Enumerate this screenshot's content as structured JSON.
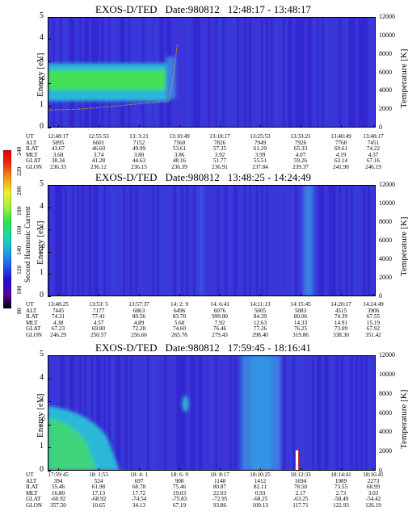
{
  "colors": {
    "background_blue": "#3c33d8",
    "deep_blue": "#2a22c8",
    "band_green": "#44e055",
    "band_cyan": "#2ab8d8",
    "light_blue": "#3b7fe0",
    "trace_orange": "#f0a030"
  },
  "colorbar": {
    "label": "Second Harmonic Current",
    "ticks": [
      "80",
      "100",
      "120",
      "140",
      "160",
      "180",
      "200",
      "220",
      "240"
    ],
    "stops": [
      "#000000",
      "#5a00a0",
      "#2010d0",
      "#1f5fe8",
      "#20a8e0",
      "#20d8a8",
      "#30e050",
      "#a0f040",
      "#f0f030",
      "#f0a020",
      "#f03010",
      "#e00000"
    ]
  },
  "panels": [
    {
      "title": "EXOS-D/TED",
      "date": "Date:980812",
      "range": "12:48:17 - 13:48:17",
      "ylabel_left": "Energy [eV]",
      "ylabel_right": "Temperature [K]",
      "yticks_left": [
        "0",
        "1",
        "2",
        "3",
        "4",
        "5"
      ],
      "yticks_right": [
        "0",
        "2000",
        "4000",
        "6000",
        "8000",
        "10000",
        "12000"
      ],
      "orbit": {
        "rows": [
          "UT",
          "ALT",
          "ILAT",
          "MLT",
          "GLAT",
          "GLON"
        ],
        "columns": [
          [
            "12:48:17",
            "5895",
            "43.67",
            "3.68",
            "38.34",
            "236.33"
          ],
          [
            "12:55:53",
            "6601",
            "46.60",
            "3.74",
            "41.28",
            "236.12"
          ],
          [
            "13: 3:21",
            "7152",
            "49.99",
            "3.80",
            "44.63",
            "236.15"
          ],
          [
            "13:10:49",
            "7560",
            "53.61",
            "3.86",
            "48.16",
            "236.39"
          ],
          [
            "13:18:17",
            "7826",
            "57.35",
            "3.92",
            "51.77",
            "236.91"
          ],
          [
            "13:25:53",
            "7949",
            "61.29",
            "3.99",
            "55.51",
            "237.84"
          ],
          [
            "13:33:21",
            "7926",
            "65.33",
            "4.07",
            "59.26",
            "239.37"
          ],
          [
            "13:40:49",
            "7760",
            "69.61",
            "4.19",
            "63.14",
            "241.90"
          ],
          [
            "13:48:17",
            "7451",
            "74.22",
            "4.37",
            "67.16",
            "246.19"
          ]
        ]
      }
    },
    {
      "title": "EXOS-D/TED",
      "date": "Date:980812",
      "range": "13:48:25 - 14:24:49",
      "ylabel_left": "Energy [eV]",
      "ylabel_right": "Temperature [K]",
      "yticks_left": [
        "0",
        "1",
        "2",
        "3",
        "4",
        "5"
      ],
      "yticks_right": [
        "0",
        "2000",
        "4000",
        "6000",
        "8000",
        "10000",
        "12000"
      ],
      "orbit": {
        "rows": [
          "UT",
          "ALT",
          "ILAT",
          "MLT",
          "GLAT",
          "GLON"
        ],
        "columns": [
          [
            "13:48:25",
            "7445",
            "74.31",
            "4.38",
            "67.23",
            "246.29"
          ],
          [
            "13:53: 5",
            "7177",
            "77.41",
            "4.57",
            "69.80",
            "250.57"
          ],
          [
            "13:57:37",
            "6863",
            "80.56",
            "4.89",
            "72.28",
            "256.66"
          ],
          [
            "14: 2: 9",
            "6496",
            "83.70",
            "5.60",
            "74.60",
            "265.78"
          ],
          [
            "14: 6:41",
            "6076",
            "999.00",
            "7.92",
            "76.46",
            "279.43"
          ],
          [
            "14:11:13",
            "5605",
            "84.39",
            "12.63",
            "77.26",
            "298.40"
          ],
          [
            "14:15:45",
            "5083",
            "80.06",
            "14.33",
            "76.25",
            "319.86"
          ],
          [
            "14:20:17",
            "4515",
            "74.39",
            "14.91",
            "73.09",
            "338.30"
          ],
          [
            "14:24:49",
            "3906",
            "67.55",
            "15.19",
            "67.92",
            "351.42"
          ]
        ]
      }
    },
    {
      "title": "EXOS-D/TED",
      "date": "Date:980812",
      "range": "17:59:45 - 18:16:41",
      "ylabel_left": "Energy [eV]",
      "ylabel_right": "Temperature [K]",
      "yticks_left": [
        "0",
        "1",
        "2",
        "3",
        "4",
        "5"
      ],
      "yticks_right": [
        "0",
        "2000",
        "4000",
        "6000",
        "8000",
        "10000",
        "12000"
      ],
      "orbit": {
        "rows": [
          "UT",
          "ALT",
          "ILAT",
          "MLT",
          "GLAT",
          "GLON"
        ],
        "columns": [
          [
            "17:59:45",
            "394",
            "55.46",
            "16.80",
            "-60.92",
            "357.50"
          ],
          [
            "18: 1:53",
            "524",
            "61.98",
            "17.13",
            "-68.92",
            "10.65"
          ],
          [
            "18: 4: 1",
            "697",
            "68.78",
            "17.72",
            "-74.54",
            "34.13"
          ],
          [
            "18: 6: 9",
            "908",
            "75.46",
            "19.03",
            "-75.83",
            "67.19"
          ],
          [
            "18: 8:17",
            "1148",
            "80.87",
            "22.03",
            "-72.95",
            "93.86"
          ],
          [
            "18:10:25",
            "1412",
            "82.11",
            "0.93",
            "-68.25",
            "109.13"
          ],
          [
            "18:12:33",
            "1694",
            "78.50",
            "2.17",
            "-63.25",
            "117.71"
          ],
          [
            "18:14:41",
            "1989",
            "73.55",
            "2.73",
            "-58.49",
            "122.93"
          ],
          [
            "18:16:41",
            "2273",
            "68.99",
            "3.03",
            "-54.42",
            "126.19"
          ]
        ]
      }
    }
  ],
  "chart_data": [
    {
      "type": "heatmap",
      "title": "EXOS-D/TED Date:980812 12:48:17 - 13:48:17",
      "xlabel": "UT",
      "x": [
        "12:48:17",
        "12:55:53",
        "13: 3:21",
        "13:10:49",
        "13:18:17",
        "13:25:53",
        "13:33:21",
        "13:40:49",
        "13:48:17"
      ],
      "ylabel": "Energy [eV]",
      "ylim": [
        0,
        5
      ],
      "y2label": "Temperature [K]",
      "y2lim": [
        0,
        12000
      ],
      "colorbar_label": "Second Harmonic Current",
      "colorbar_range": [
        80,
        240
      ],
      "features": [
        {
          "kind": "band",
          "x_start": "12:48:17",
          "x_end": "13:10:49",
          "energy_range": [
            1.7,
            2.6
          ],
          "level": 180
        },
        {
          "kind": "band",
          "x_start": "12:48:17",
          "x_end": "13:10:49",
          "energy_range": [
            1.2,
            2.9
          ],
          "level": 155
        }
      ],
      "series": [
        {
          "name": "Temperature",
          "x": [
            "12:48:17",
            "12:55:53",
            "13: 3:21",
            "13:10:49",
            "13:12:00",
            "13:13:00"
          ],
          "values": [
            1900,
            2000,
            2300,
            2900,
            6000,
            9000
          ]
        }
      ]
    },
    {
      "type": "heatmap",
      "title": "EXOS-D/TED Date:980812 13:48:25 - 14:24:49",
      "xlabel": "UT",
      "x": [
        "13:48:25",
        "13:53: 5",
        "13:57:37",
        "14: 2: 9",
        "14: 6:41",
        "14:11:13",
        "14:15:45",
        "14:20:17",
        "14:24:49"
      ],
      "ylabel": "Energy [eV]",
      "ylim": [
        0,
        5
      ],
      "y2label": "Temperature [K]",
      "y2lim": [
        0,
        12000
      ],
      "colorbar_label": "Second Harmonic Current",
      "colorbar_range": [
        80,
        240
      ],
      "features": [
        {
          "kind": "stripe",
          "x_start": "14:15:45",
          "x_end": "14:17:00",
          "energy_range": [
            0,
            5
          ],
          "level": 150
        }
      ]
    },
    {
      "type": "heatmap",
      "title": "EXOS-D/TED Date:980812 17:59:45 - 18:16:41",
      "xlabel": "UT",
      "x": [
        "17:59:45",
        "18: 1:53",
        "18: 4: 1",
        "18: 6: 9",
        "18: 8:17",
        "18:10:25",
        "18:12:33",
        "18:14:41",
        "18:16:41"
      ],
      "ylabel": "Energy [eV]",
      "ylim": [
        0,
        5
      ],
      "y2label": "Temperature [K]",
      "y2lim": [
        0,
        12000
      ],
      "colorbar_label": "Second Harmonic Current",
      "colorbar_range": [
        80,
        240
      ],
      "features": [
        {
          "kind": "patch",
          "x_start": "17:59:45",
          "x_end": "18: 1:53",
          "energy_range": [
            0,
            2.8
          ],
          "level": 170
        },
        {
          "kind": "stripe",
          "x_start": "18: 9:30",
          "x_end": "18:12:00",
          "energy_range": [
            0,
            5
          ],
          "level": 150
        },
        {
          "kind": "spike",
          "x_start": "18:12:33",
          "x_end": "18:12:40",
          "energy_range": [
            0,
            0.9
          ],
          "level": 230
        }
      ],
      "series": [
        {
          "name": "Temperature",
          "x": [
            "18:12:33"
          ],
          "values": [
            1800
          ]
        }
      ]
    }
  ]
}
